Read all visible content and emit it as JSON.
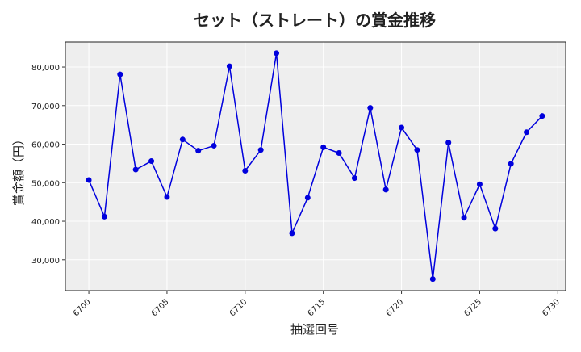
{
  "chart_data": {
    "type": "line",
    "title": "セット（ストレート）の賞金推移",
    "xlabel": "抽選回号",
    "ylabel": "賞金額（円）",
    "x": [
      6700,
      6701,
      6702,
      6703,
      6704,
      6705,
      6706,
      6707,
      6708,
      6709,
      6710,
      6711,
      6712,
      6713,
      6714,
      6715,
      6716,
      6717,
      6718,
      6719,
      6720,
      6721,
      6722,
      6723,
      6724,
      6725,
      6726,
      6727,
      6728,
      6729
    ],
    "series": [
      {
        "values": [
          50700,
          41200,
          78100,
          53400,
          55600,
          46300,
          61200,
          58300,
          59600,
          80200,
          53100,
          58500,
          83600,
          36900,
          46100,
          59200,
          57700,
          51200,
          69400,
          48200,
          64300,
          58500,
          25000,
          60400,
          40900,
          49600,
          38100,
          54900,
          63100,
          67300
        ],
        "color": "#0000dd"
      }
    ],
    "xlim": [
      6698.5,
      6730.5
    ],
    "ylim": [
      22000,
      86500
    ],
    "xticks": [
      6700,
      6705,
      6710,
      6715,
      6720,
      6725,
      6730
    ],
    "xtick_labels": [
      "6700",
      "6705",
      "6710",
      "6715",
      "6720",
      "6725",
      "6730"
    ],
    "yticks": [
      30000,
      40000,
      50000,
      60000,
      70000,
      80000
    ],
    "ytick_labels": [
      "30,000",
      "40,000",
      "50,000",
      "60,000",
      "70,000",
      "80,000"
    ],
    "grid": true,
    "background": "#eeeeee",
    "grid_color": "#ffffff"
  }
}
